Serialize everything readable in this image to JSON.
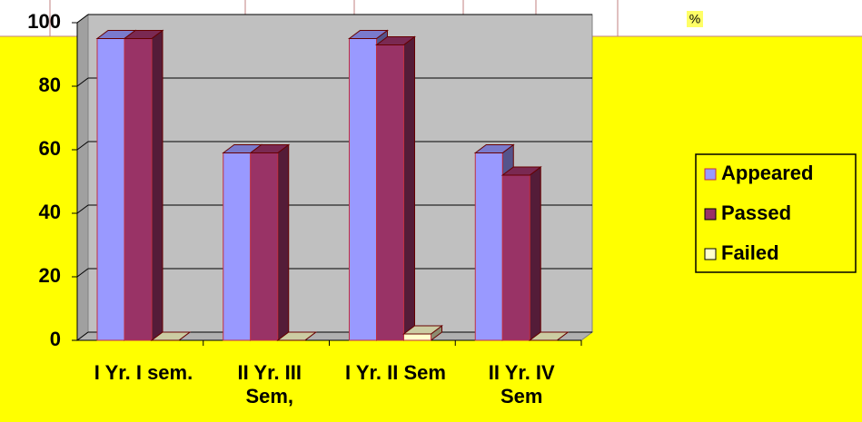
{
  "table_fragment": {
    "cells": [
      "%"
    ]
  },
  "chart_data": {
    "type": "bar3d",
    "categories": [
      "I Yr. I sem.",
      "II Yr. III Sem,",
      "I Yr. II Sem",
      "II Yr. IV Sem"
    ],
    "series": [
      {
        "name": "Appeared",
        "color": "#9999ff",
        "values": [
          95,
          59,
          95,
          59
        ]
      },
      {
        "name": "Passed",
        "color": "#993366",
        "values": [
          95,
          59,
          93,
          52
        ]
      },
      {
        "name": "Failed",
        "color": "#ffffcc",
        "values": [
          0,
          0,
          2,
          0
        ]
      }
    ],
    "ylim": [
      0,
      100
    ],
    "yticks": [
      0,
      20,
      40,
      60,
      80,
      100
    ],
    "grid": true,
    "legend": "right"
  }
}
